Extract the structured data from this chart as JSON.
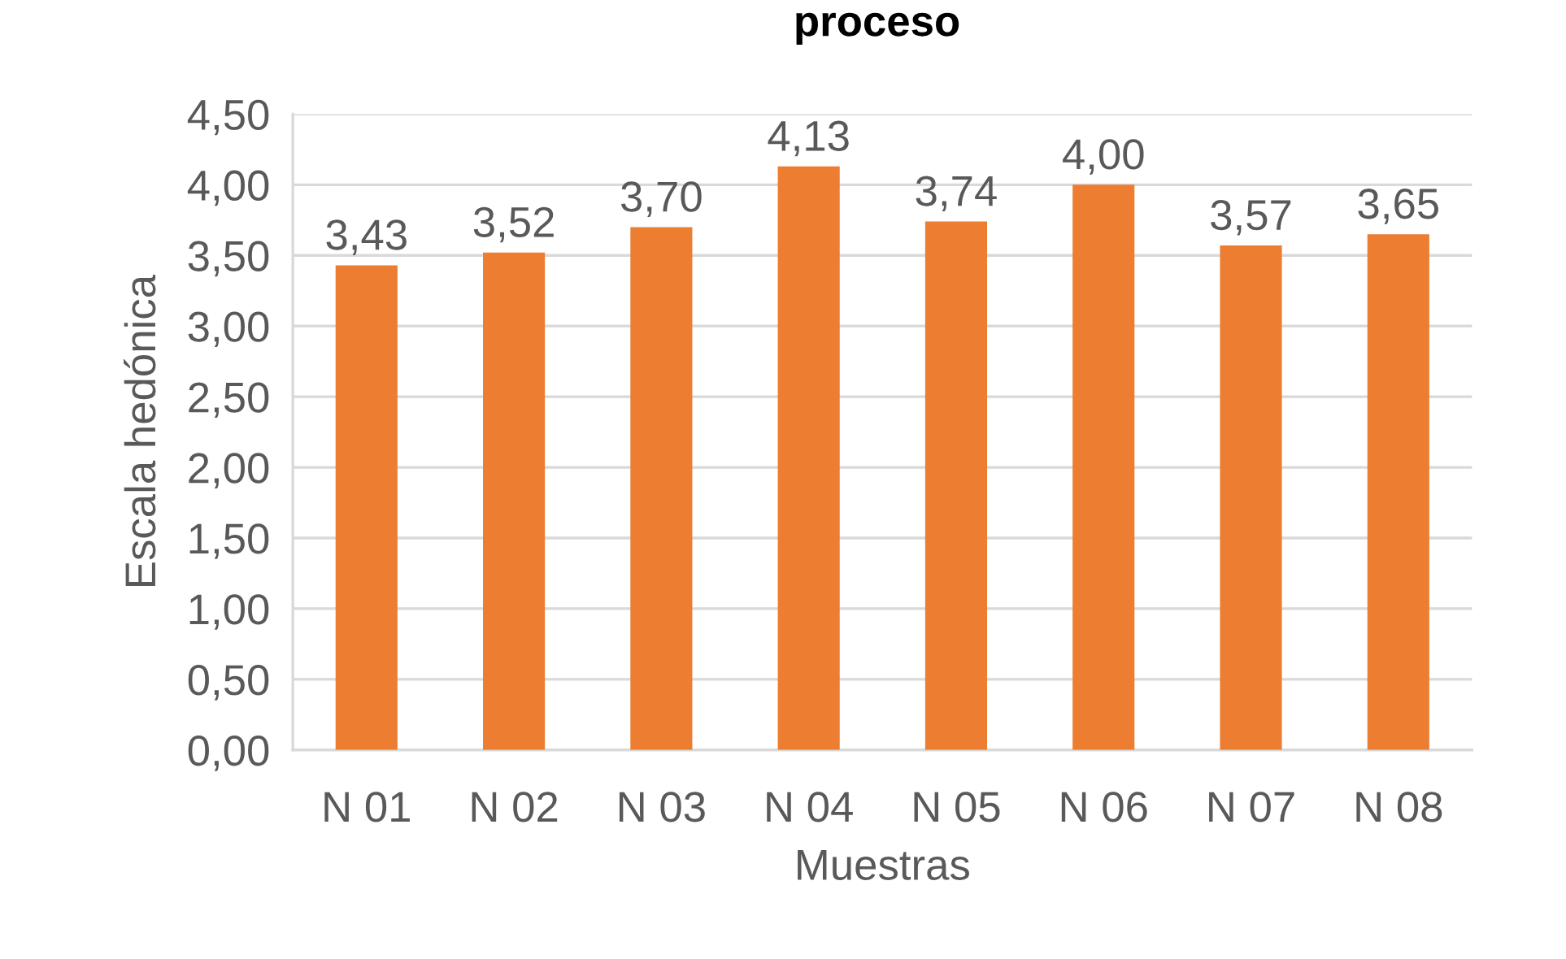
{
  "chart_data": {
    "type": "bar",
    "title": "proceso",
    "xlabel": "Muestras",
    "ylabel": "Escala hedónica",
    "categories": [
      "N 01",
      "N 02",
      "N 03",
      "N 04",
      "N 05",
      "N 06",
      "N 07",
      "N 08"
    ],
    "values": [
      3.43,
      3.52,
      3.7,
      4.13,
      3.74,
      4.0,
      3.57,
      3.65
    ],
    "value_labels": [
      "3,43",
      "3,52",
      "3,70",
      "4,13",
      "3,74",
      "4,00",
      "3,57",
      "3,65"
    ],
    "color": "#ed7d31",
    "ylim": [
      0,
      4.5
    ],
    "yticks": [
      {
        "value": 0,
        "label": "0,00"
      },
      {
        "value": 0.5,
        "label": "0,50"
      },
      {
        "value": 1,
        "label": "1,00"
      },
      {
        "value": 1.5,
        "label": "1,50"
      },
      {
        "value": 2,
        "label": "2,00"
      },
      {
        "value": 2.5,
        "label": "2,50"
      },
      {
        "value": 3,
        "label": "3,00"
      },
      {
        "value": 3.5,
        "label": "3,50"
      },
      {
        "value": 4,
        "label": "4,00"
      },
      {
        "value": 4.5,
        "label": "4,50"
      }
    ],
    "grid": "y"
  }
}
